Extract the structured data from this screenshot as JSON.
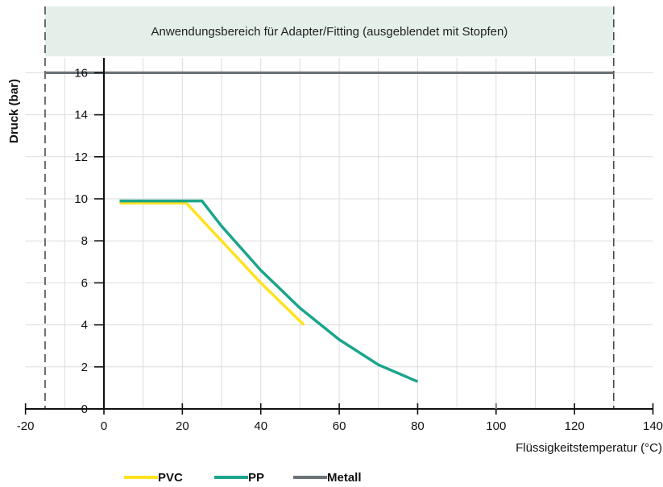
{
  "chart_data": {
    "type": "line",
    "banner": "Anwendungsbereich für Adapter/Fitting (ausgeblendet mit Stopfen)",
    "xlabel": "Flüssigkeitstemperatur (°C)",
    "ylabel": "Druck (bar)",
    "xlim": [
      -20,
      140
    ],
    "ylim": [
      0,
      16
    ],
    "xticks": [
      -20,
      0,
      20,
      40,
      60,
      80,
      100,
      120,
      140
    ],
    "yticks": [
      0,
      2,
      4,
      6,
      8,
      10,
      12,
      14,
      16
    ],
    "xtick_labels": [
      "-20",
      "0",
      "20",
      "40",
      "60",
      "80",
      "100",
      "120",
      "140"
    ],
    "ytick_labels": [
      "0",
      "2",
      "4",
      "6",
      "8",
      "10",
      "12",
      "14",
      "16"
    ],
    "vertical_grid_step": 10,
    "grid": true,
    "application_range": [
      -15,
      130
    ],
    "legend_position": "bottom",
    "series": [
      {
        "name": "PVC",
        "color": "#FFE21F",
        "x": [
          4,
          21,
          30,
          40,
          51
        ],
        "y": [
          9.8,
          9.8,
          8.0,
          6.0,
          4.0
        ]
      },
      {
        "name": "PP",
        "color": "#1AA58C",
        "x": [
          4,
          25,
          30,
          40,
          50,
          60,
          70,
          80
        ],
        "y": [
          9.9,
          9.9,
          8.7,
          6.6,
          4.8,
          3.3,
          2.1,
          1.3
        ]
      },
      {
        "name": "Metall",
        "color": "#6B7378",
        "x": [
          -15,
          130
        ],
        "y": [
          16,
          16
        ]
      }
    ]
  }
}
